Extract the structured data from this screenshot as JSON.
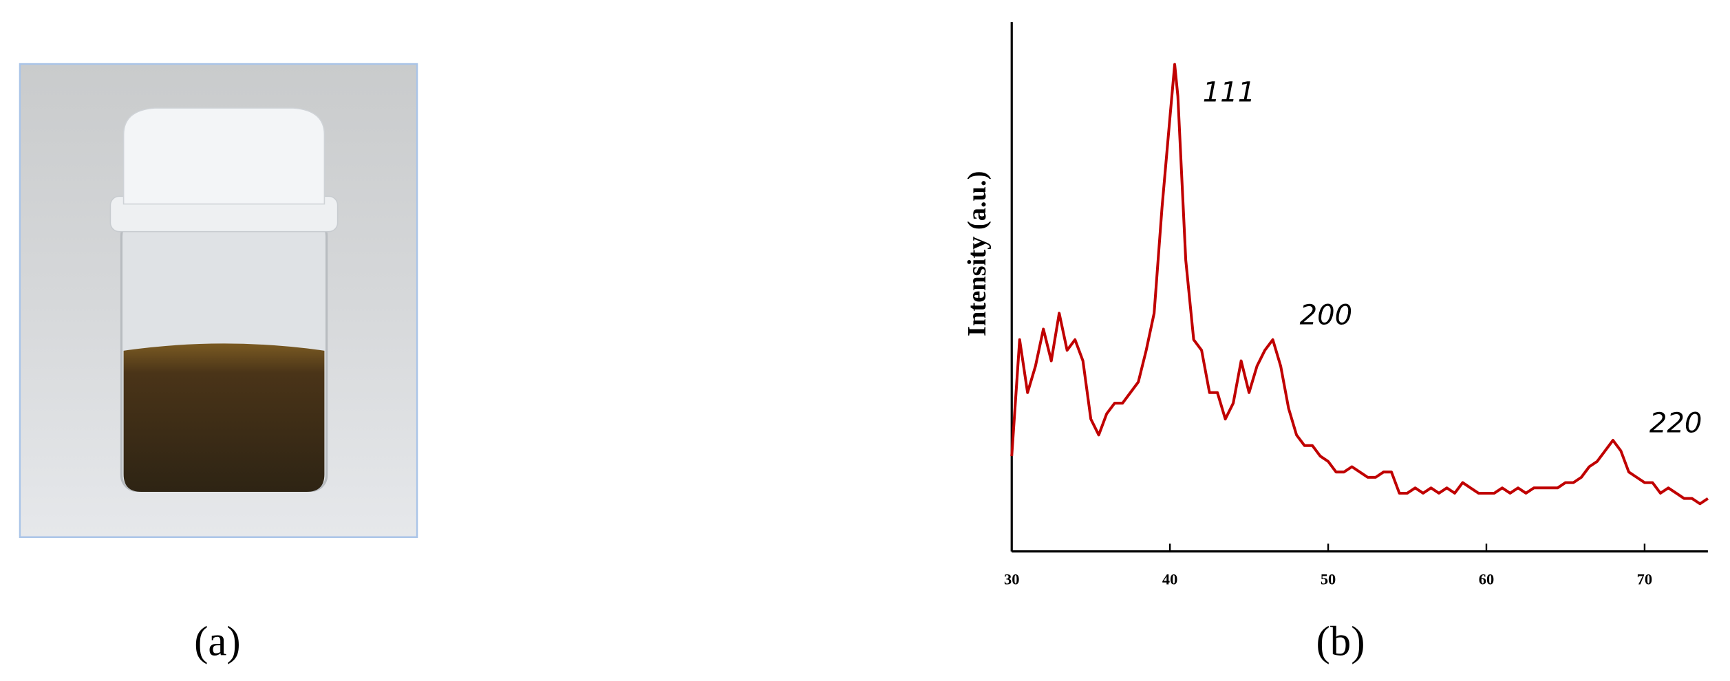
{
  "panel_labels": [
    "(a)",
    "(b)"
  ],
  "chart_data": {
    "type": "line",
    "ylabel": "Intensity (a.u.)",
    "x": [
      30,
      30.5,
      31,
      31.5,
      32,
      32.5,
      33,
      33.5,
      34,
      34.5,
      35,
      35.5,
      36,
      36.5,
      37,
      37.5,
      38,
      38.5,
      39,
      39.5,
      40,
      40.3,
      40.5,
      41,
      41.5,
      42,
      42.5,
      43,
      43.5,
      44,
      44.5,
      45,
      45.5,
      46,
      46.5,
      47,
      47.5,
      48,
      48.5,
      49,
      49.5,
      50,
      50.5,
      51,
      51.5,
      52,
      52.5,
      53,
      53.5,
      54,
      54.5,
      55,
      55.5,
      56,
      56.5,
      57,
      57.5,
      58,
      58.5,
      59,
      59.5,
      60,
      60.5,
      61,
      61.5,
      62,
      62.5,
      63,
      63.5,
      64,
      64.5,
      65,
      65.5,
      66,
      66.5,
      67,
      67.5,
      68,
      68.5,
      69,
      69.5,
      70,
      70.5,
      71,
      71.5,
      72,
      72.5,
      73,
      73.5,
      74
    ],
    "series": [
      {
        "name": null,
        "color": "#c00000",
        "values": [
          18,
          40,
          30,
          35,
          42,
          36,
          45,
          38,
          40,
          36,
          25,
          22,
          26,
          28,
          28,
          30,
          32,
          38,
          45,
          65,
          82,
          92,
          86,
          55,
          40,
          38,
          30,
          30,
          25,
          28,
          36,
          30,
          35,
          38,
          40,
          35,
          27,
          22,
          20,
          20,
          18,
          17,
          15,
          15,
          16,
          15,
          14,
          14,
          15,
          15,
          11,
          11,
          12,
          11,
          12,
          11,
          12,
          11,
          13,
          12,
          11,
          11,
          11,
          12,
          11,
          12,
          11,
          12,
          12,
          12,
          12,
          13,
          13,
          14,
          16,
          17,
          19,
          21,
          19,
          15,
          14,
          13,
          13,
          11,
          12,
          11,
          10,
          10,
          9,
          10
        ]
      }
    ],
    "xlim": [
      30,
      74
    ],
    "ylim": [
      0,
      100
    ],
    "xticks": [
      30,
      40,
      50,
      60,
      70
    ],
    "annotations": [
      "111",
      "200",
      "220"
    ]
  }
}
